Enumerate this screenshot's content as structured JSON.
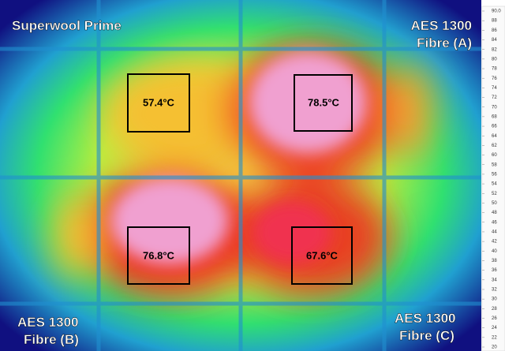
{
  "labels": {
    "top_left": "Superwool Prime",
    "top_right": [
      "AES 1300",
      "Fibre (A)"
    ],
    "bottom_left": [
      "AES 1300",
      "Fibre (B)"
    ],
    "bottom_right": [
      "AES 1300",
      "Fibre (C)"
    ]
  },
  "measurements": [
    "57.4°C",
    "78.5°C",
    "76.8°C",
    "67.6°C"
  ],
  "scale": [
    "90.0",
    "88",
    "86",
    "84",
    "82",
    "80",
    "78",
    "76",
    "74",
    "72",
    "70",
    "68",
    "66",
    "64",
    "62",
    "60",
    "58",
    "56",
    "54",
    "52",
    "50",
    "48",
    "46",
    "44",
    "42",
    "40",
    "38",
    "36",
    "34",
    "32",
    "30",
    "28",
    "26",
    "24",
    "22",
    "20"
  ]
}
